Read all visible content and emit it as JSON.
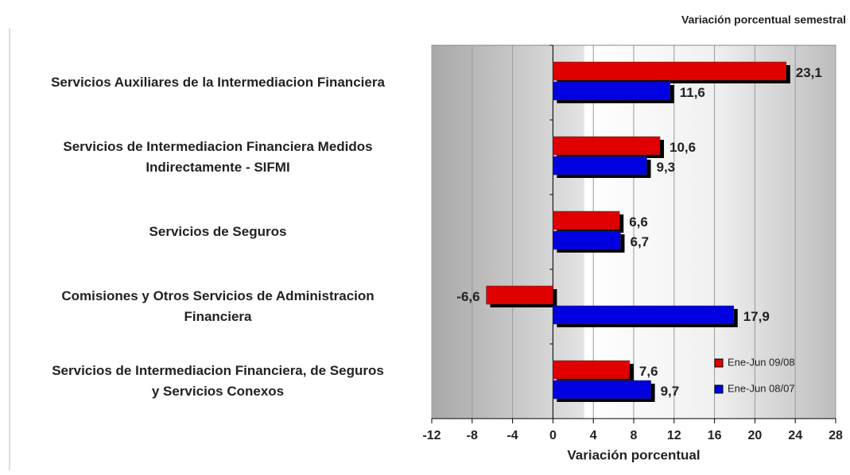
{
  "chart_data": {
    "type": "bar",
    "orientation": "horizontal",
    "title": "Variación porcentual semestral",
    "x_label": "Variación porcentual",
    "categories": [
      "Servicios Auxiliares de la Intermediacion Financiera",
      "Servicios de Intermediacion Financiera Medidos\nIndirectamente - SIFMI",
      "Servicios de Seguros",
      "Comisiones y Otros Servicios de Administracion\nFinanciera",
      "Servicios de Intermediacion Financiera, de Seguros\ny Servicios Conexos"
    ],
    "series": [
      {
        "name": "Ene-Jun 09/08",
        "color": "#e00000",
        "values": [
          23.1,
          10.6,
          6.6,
          -6.6,
          7.6
        ],
        "value_labels": [
          "23,1",
          "10,6",
          "6,6",
          "-6,6",
          "7,6"
        ]
      },
      {
        "name": "Ene-Jun 08/07",
        "color": "#0000e0",
        "values": [
          11.6,
          9.3,
          6.7,
          17.9,
          9.7
        ],
        "value_labels": [
          "11,6",
          "9,3",
          "6,7",
          "17,9",
          "9,7"
        ]
      }
    ],
    "xlim": [
      -12,
      28
    ],
    "xticks": [
      -12,
      -8,
      -4,
      0,
      4,
      8,
      12,
      16,
      20,
      24,
      28
    ],
    "grid": true,
    "legend": "lower right"
  }
}
